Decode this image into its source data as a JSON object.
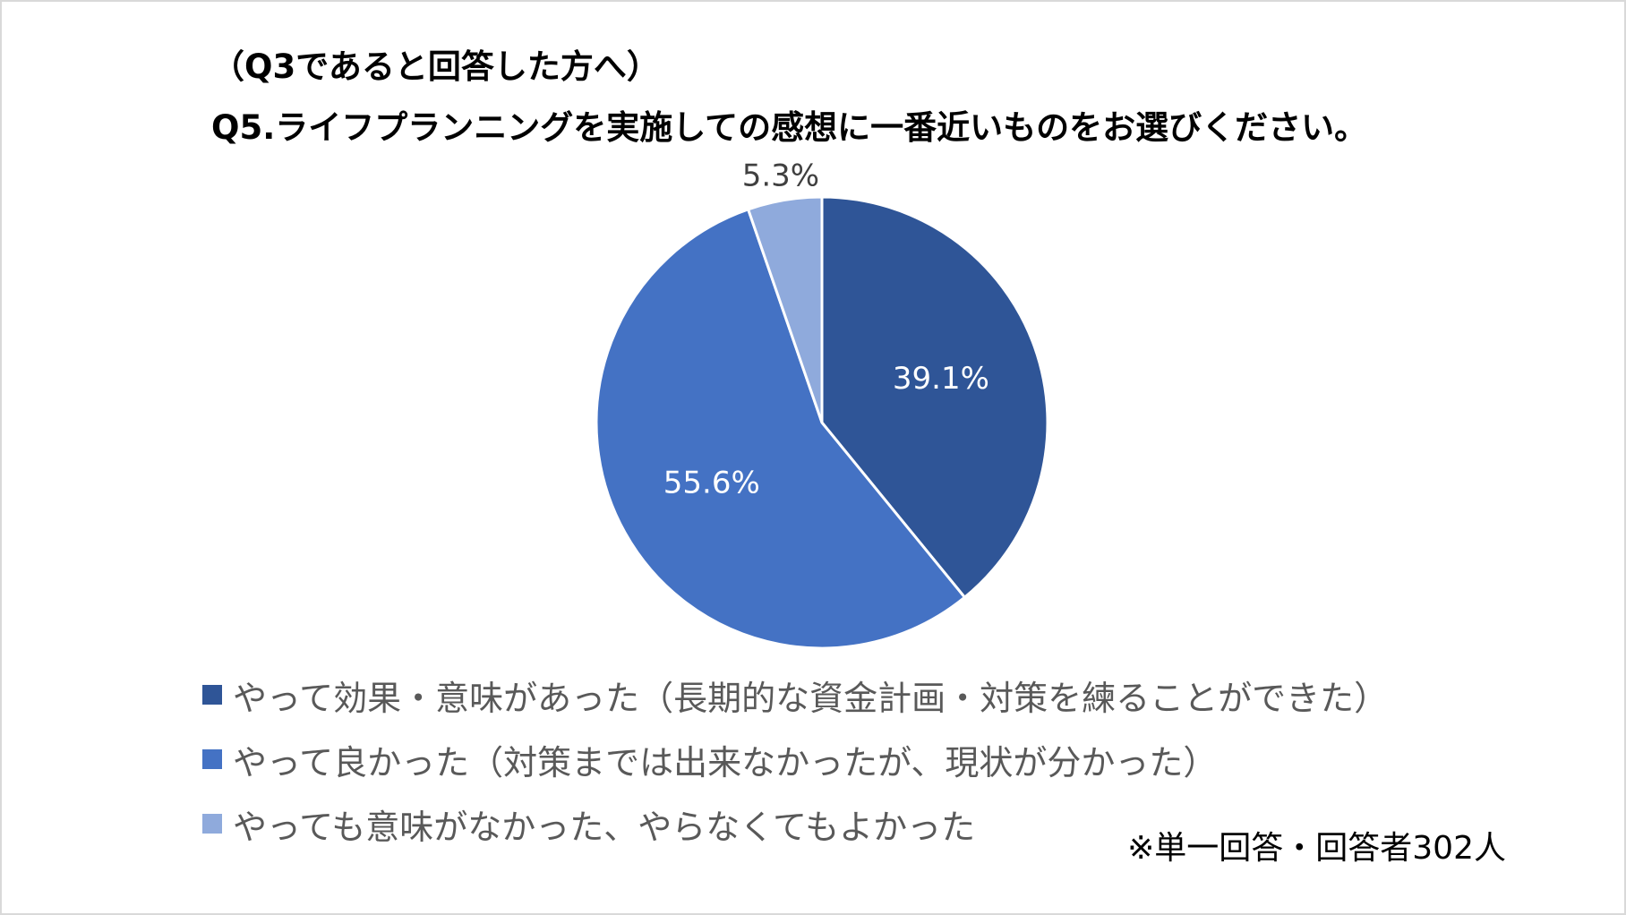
{
  "subtitle": "（Q3であると回答した方へ）",
  "title": "Q5.ライフプランニングを実施しての感想に一番近いものをお選びください。",
  "note": "※単一回答・回答者302人",
  "chart_data": {
    "type": "pie",
    "title": "Q5.ライフプランニングを実施しての感想に一番近いものをお選びください。",
    "start_angle_deg": 0,
    "direction": "clockwise",
    "slices": [
      {
        "label": "やって効果・意味があった（長期的な資金計画・対策を練ることができた）",
        "value": 39.1,
        "value_label": "39.1%",
        "color": "#2f5597"
      },
      {
        "label": "やって良かった（対策までは出来なかったが、現状が分かった）",
        "value": 55.6,
        "value_label": "55.6%",
        "color": "#4472c4"
      },
      {
        "label": "やっても意味がなかった、やらなくてもよかった",
        "value": 5.3,
        "value_label": "5.3%",
        "color": "#8faadc"
      }
    ],
    "legend_position": "bottom-left"
  }
}
